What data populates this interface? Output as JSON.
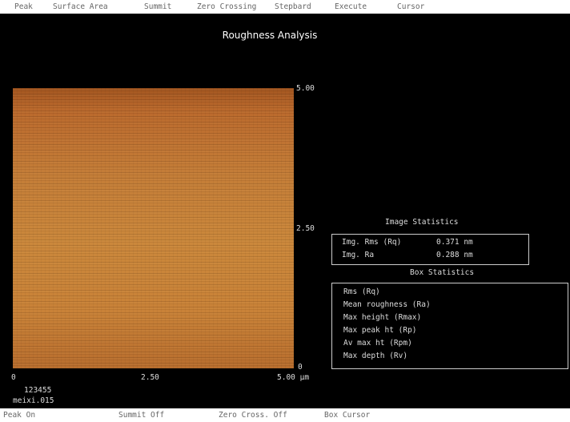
{
  "menu": [
    "Peak",
    "Surface Area",
    "Summit",
    "Zero Crossing",
    "Stepbard",
    "Execute",
    "Cursor"
  ],
  "title": "Roughness Analysis",
  "image": {
    "y_axis": [
      "5.00",
      "2.50",
      "0"
    ],
    "x_axis": [
      "0",
      "2.50",
      "5.00 µm"
    ],
    "id": "123455",
    "file": "meixi.015"
  },
  "image_statistics": {
    "title": "Image Statistics",
    "rows": [
      [
        "Img. Rms (Rq)",
        "0.371 nm"
      ],
      [
        "Img. Ra",
        "0.288 nm"
      ]
    ]
  },
  "box_statistics": {
    "title": "Box Statistics",
    "rows": [
      "Rms (Rq)",
      "Mean roughness (Ra)",
      "Max height (Rmax)",
      "Max peak ht (Rp)",
      "Av max ht (Rpm)",
      "Max depth (Rv)"
    ]
  },
  "status": [
    "Peak On",
    "Summit Off",
    "Zero Cross. Off",
    "Box Cursor"
  ]
}
